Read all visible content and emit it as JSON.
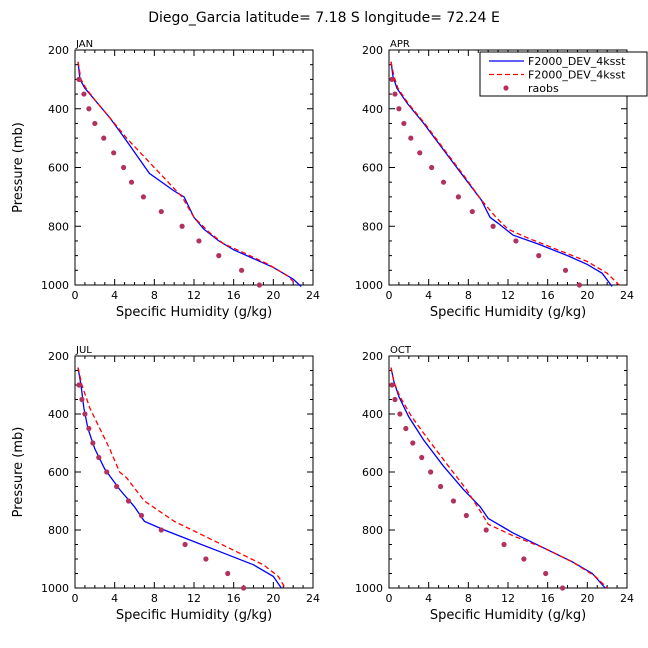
{
  "page": {
    "title": "Diego_Garcia   latitude= 7.18 S longitude= 72.24 E"
  },
  "chart_data": [
    {
      "type": "line",
      "panel": "JAN",
      "xlabel": "Specific Humidity (g/kg)",
      "ylabel": "Pressure (mb)",
      "xlim": [
        0,
        24
      ],
      "ylim": [
        1000,
        200
      ],
      "y_axis": "pressure, increasing downward",
      "xticks": [
        0,
        4,
        8,
        12,
        16,
        20,
        24
      ],
      "yticks": [
        200,
        400,
        600,
        800,
        1000
      ],
      "legend": "none",
      "series": [
        {
          "name": "",
          "color": "#0000ff",
          "style": "solid",
          "points": [
            [
              0.3,
              240
            ],
            [
              0.5,
              300
            ],
            [
              1.0,
              330
            ],
            [
              2.0,
              370
            ],
            [
              3.5,
              430
            ],
            [
              5.0,
              500
            ],
            [
              7.5,
              620
            ],
            [
              10.0,
              680
            ],
            [
              11.0,
              700
            ],
            [
              12.0,
              770
            ],
            [
              13.0,
              810
            ],
            [
              14.5,
              850
            ],
            [
              16.0,
              880
            ],
            [
              18.0,
              910
            ],
            [
              20.0,
              940
            ],
            [
              22.0,
              980
            ],
            [
              22.8,
              1005
            ]
          ]
        },
        {
          "name": "",
          "color": "#ff0000",
          "style": "dashed",
          "points": [
            [
              0.3,
              240
            ],
            [
              0.6,
              300
            ],
            [
              1.1,
              330
            ],
            [
              2.0,
              370
            ],
            [
              3.5,
              430
            ],
            [
              5.2,
              500
            ],
            [
              8.0,
              600
            ],
            [
              10.8,
              700
            ],
            [
              12.0,
              770
            ],
            [
              13.5,
              820
            ],
            [
              15.0,
              860
            ],
            [
              17.0,
              890
            ],
            [
              19.5,
              930
            ],
            [
              21.5,
              970
            ],
            [
              22.2,
              995
            ]
          ]
        },
        {
          "name": "",
          "color": "#b2325f",
          "style": "markers",
          "points": [
            [
              0.4,
              300
            ],
            [
              0.9,
              350
            ],
            [
              1.4,
              400
            ],
            [
              2.0,
              450
            ],
            [
              2.9,
              500
            ],
            [
              3.9,
              550
            ],
            [
              4.9,
              600
            ],
            [
              5.7,
              650
            ],
            [
              6.9,
              700
            ],
            [
              8.7,
              750
            ],
            [
              10.8,
              800
            ],
            [
              12.5,
              850
            ],
            [
              14.5,
              900
            ],
            [
              16.8,
              950
            ],
            [
              18.6,
              1000
            ]
          ]
        }
      ]
    },
    {
      "type": "line",
      "panel": "APR",
      "xlabel": "Specific Humidity (g/kg)",
      "ylabel": "",
      "xlim": [
        0,
        24
      ],
      "ylim": [
        1000,
        200
      ],
      "xticks": [
        0,
        4,
        8,
        12,
        16,
        20,
        24
      ],
      "yticks": [
        200,
        400,
        600,
        800,
        1000
      ],
      "legend": "top-right",
      "series": [
        {
          "name": "F2000_DEV_4ksst",
          "color": "#0000ff",
          "style": "solid",
          "points": [
            [
              0.2,
              240
            ],
            [
              0.4,
              290
            ],
            [
              0.8,
              330
            ],
            [
              1.8,
              380
            ],
            [
              3.5,
              450
            ],
            [
              5.5,
              540
            ],
            [
              7.5,
              630
            ],
            [
              9.3,
              710
            ],
            [
              10.2,
              770
            ],
            [
              11.0,
              790
            ],
            [
              12.5,
              830
            ],
            [
              15.0,
              860
            ],
            [
              18.0,
              900
            ],
            [
              20.0,
              930
            ],
            [
              21.5,
              960
            ],
            [
              22.5,
              1005
            ]
          ]
        },
        {
          "name": "F2000_DEV_4ksst",
          "color": "#ff0000",
          "style": "dashed",
          "points": [
            [
              0.2,
              240
            ],
            [
              0.5,
              290
            ],
            [
              0.9,
              330
            ],
            [
              1.9,
              380
            ],
            [
              3.6,
              450
            ],
            [
              5.6,
              540
            ],
            [
              7.6,
              630
            ],
            [
              9.3,
              710
            ],
            [
              10.8,
              770
            ],
            [
              12.0,
              810
            ],
            [
              14.0,
              840
            ],
            [
              17.0,
              880
            ],
            [
              20.0,
              920
            ],
            [
              22.0,
              960
            ],
            [
              23.2,
              1000
            ]
          ]
        },
        {
          "name": "raobs",
          "color": "#b2325f",
          "style": "markers",
          "points": [
            [
              0.3,
              300
            ],
            [
              0.6,
              350
            ],
            [
              1.0,
              400
            ],
            [
              1.5,
              450
            ],
            [
              2.2,
              500
            ],
            [
              3.1,
              550
            ],
            [
              4.3,
              600
            ],
            [
              5.5,
              650
            ],
            [
              7.0,
              700
            ],
            [
              8.4,
              750
            ],
            [
              10.5,
              800
            ],
            [
              12.8,
              850
            ],
            [
              15.1,
              900
            ],
            [
              17.8,
              950
            ],
            [
              19.2,
              1000
            ]
          ]
        }
      ]
    },
    {
      "type": "line",
      "panel": "JUL",
      "xlabel": "Specific Humidity (g/kg)",
      "ylabel": "Pressure (mb)",
      "xlim": [
        0,
        24
      ],
      "ylim": [
        1000,
        200
      ],
      "xticks": [
        0,
        4,
        8,
        12,
        16,
        20,
        24
      ],
      "yticks": [
        200,
        400,
        600,
        800,
        1000
      ],
      "legend": "none",
      "series": [
        {
          "name": "",
          "color": "#0000ff",
          "style": "solid",
          "points": [
            [
              0.3,
              240
            ],
            [
              0.6,
              300
            ],
            [
              0.9,
              380
            ],
            [
              1.3,
              450
            ],
            [
              2.0,
              520
            ],
            [
              3.0,
              590
            ],
            [
              4.5,
              660
            ],
            [
              6.0,
              720
            ],
            [
              7.0,
              770
            ],
            [
              9.0,
              800
            ],
            [
              12.0,
              840
            ],
            [
              15.0,
              880
            ],
            [
              18.0,
              920
            ],
            [
              20.0,
              960
            ],
            [
              20.8,
              1000
            ]
          ]
        },
        {
          "name": "",
          "color": "#ff0000",
          "style": "dashed",
          "points": [
            [
              0.3,
              240
            ],
            [
              0.7,
              300
            ],
            [
              1.5,
              380
            ],
            [
              2.5,
              450
            ],
            [
              3.5,
              520
            ],
            [
              4.5,
              600
            ],
            [
              5.2,
              620
            ],
            [
              7.0,
              700
            ],
            [
              10.0,
              770
            ],
            [
              13.0,
              820
            ],
            [
              16.0,
              870
            ],
            [
              19.0,
              920
            ],
            [
              20.5,
              960
            ],
            [
              21.2,
              1000
            ]
          ]
        },
        {
          "name": "",
          "color": "#b2325f",
          "style": "markers",
          "points": [
            [
              0.4,
              300
            ],
            [
              0.7,
              350
            ],
            [
              1.0,
              400
            ],
            [
              1.4,
              450
            ],
            [
              1.8,
              500
            ],
            [
              2.4,
              550
            ],
            [
              3.2,
              600
            ],
            [
              4.2,
              650
            ],
            [
              5.4,
              700
            ],
            [
              6.7,
              750
            ],
            [
              8.7,
              800
            ],
            [
              11.1,
              850
            ],
            [
              13.2,
              900
            ],
            [
              15.4,
              950
            ],
            [
              17.0,
              1000
            ]
          ]
        }
      ]
    },
    {
      "type": "line",
      "panel": "OCT",
      "xlabel": "Specific Humidity (g/kg)",
      "ylabel": "",
      "xlim": [
        0,
        24
      ],
      "ylim": [
        1000,
        200
      ],
      "xticks": [
        0,
        4,
        8,
        12,
        16,
        20,
        24
      ],
      "yticks": [
        200,
        400,
        600,
        800,
        1000
      ],
      "legend": "none",
      "series": [
        {
          "name": "",
          "color": "#0000ff",
          "style": "solid",
          "points": [
            [
              0.2,
              240
            ],
            [
              0.5,
              290
            ],
            [
              1.0,
              340
            ],
            [
              2.0,
              410
            ],
            [
              3.5,
              490
            ],
            [
              5.5,
              580
            ],
            [
              7.5,
              660
            ],
            [
              9.2,
              720
            ],
            [
              10.0,
              760
            ],
            [
              12.5,
              810
            ],
            [
              15.5,
              860
            ],
            [
              18.5,
              910
            ],
            [
              20.5,
              950
            ],
            [
              21.8,
              1000
            ]
          ]
        },
        {
          "name": "",
          "color": "#ff0000",
          "style": "dashed",
          "points": [
            [
              0.2,
              240
            ],
            [
              0.5,
              290
            ],
            [
              1.1,
              340
            ],
            [
              2.3,
              410
            ],
            [
              4.0,
              490
            ],
            [
              6.0,
              580
            ],
            [
              7.8,
              660
            ],
            [
              9.3,
              740
            ],
            [
              10.0,
              780
            ],
            [
              12.5,
              820
            ],
            [
              15.5,
              860
            ],
            [
              18.5,
              910
            ],
            [
              20.8,
              960
            ],
            [
              22.0,
              1000
            ]
          ]
        },
        {
          "name": "",
          "color": "#b2325f",
          "style": "markers",
          "points": [
            [
              0.3,
              300
            ],
            [
              0.6,
              350
            ],
            [
              1.1,
              400
            ],
            [
              1.7,
              450
            ],
            [
              2.4,
              500
            ],
            [
              3.3,
              550
            ],
            [
              4.2,
              600
            ],
            [
              5.2,
              650
            ],
            [
              6.5,
              700
            ],
            [
              7.8,
              750
            ],
            [
              9.8,
              800
            ],
            [
              11.6,
              850
            ],
            [
              13.6,
              900
            ],
            [
              15.8,
              950
            ],
            [
              17.5,
              1000
            ]
          ]
        }
      ]
    }
  ]
}
